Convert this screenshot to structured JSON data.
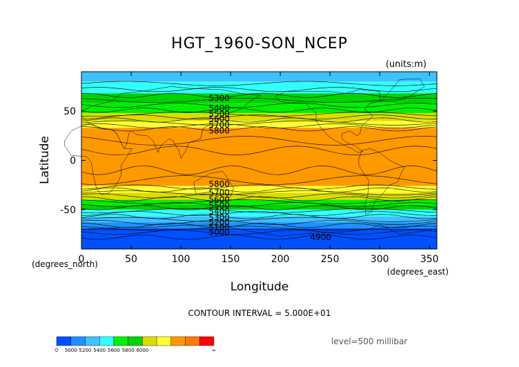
{
  "chart_data": {
    "type": "contour",
    "title": "HGT_1960-SON_NCEP",
    "units_label": "(units:m)",
    "xlabel": "Longitude",
    "ylabel": "Latitude",
    "x_unit_label": "(degrees_east)",
    "y_unit_label": "(degrees_north)",
    "xlim": [
      0,
      357.5
    ],
    "ylim": [
      -90,
      90
    ],
    "xticks": [
      0,
      50,
      100,
      150,
      200,
      250,
      300,
      350
    ],
    "yticks": [
      50,
      0,
      -50
    ],
    "contour_interval_text": "CONTOUR INTERVAL = 5.000E+01",
    "level_text": "level=500 millibar",
    "contour_labels": [
      {
        "text": "5300",
        "lon": 128,
        "lat": 63
      },
      {
        "text": "5400",
        "lon": 128,
        "lat": 53
      },
      {
        "text": "5500",
        "lon": 128,
        "lat": 47
      },
      {
        "text": "5600",
        "lon": 128,
        "lat": 42
      },
      {
        "text": "5700",
        "lon": 128,
        "lat": 36
      },
      {
        "text": "5800",
        "lon": 128,
        "lat": 30
      },
      {
        "text": "5800",
        "lon": 128,
        "lat": -24
      },
      {
        "text": "5700",
        "lon": 128,
        "lat": -33
      },
      {
        "text": "5600",
        "lon": 128,
        "lat": -40
      },
      {
        "text": "5500",
        "lon": 128,
        "lat": -46
      },
      {
        "text": "5400",
        "lon": 128,
        "lat": -52
      },
      {
        "text": "5300",
        "lon": 128,
        "lat": -58
      },
      {
        "text": "5200",
        "lon": 128,
        "lat": -63
      },
      {
        "text": "5100",
        "lon": 128,
        "lat": -68
      },
      {
        "text": "5000",
        "lon": 128,
        "lat": -73
      },
      {
        "text": "4900",
        "lon": 230,
        "lat": -78
      }
    ],
    "fill_bands": [
      {
        "lat_top": 90,
        "lat_bottom": 80,
        "color": "#3fc0ff"
      },
      {
        "lat_top": 80,
        "lat_bottom": 68,
        "color": "#33ffff"
      },
      {
        "lat_top": 68,
        "lat_bottom": 58,
        "color": "#00d200"
      },
      {
        "lat_top": 58,
        "lat_bottom": 48,
        "color": "#00f000"
      },
      {
        "lat_top": 48,
        "lat_bottom": 40,
        "color": "#dcdc00"
      },
      {
        "lat_top": 40,
        "lat_bottom": 33,
        "color": "#ffff32"
      },
      {
        "lat_top": 33,
        "lat_bottom": -26,
        "color": "#ff9900"
      },
      {
        "lat_top": -26,
        "lat_bottom": -33,
        "color": "#ffff32"
      },
      {
        "lat_top": -33,
        "lat_bottom": -40,
        "color": "#dcdc00"
      },
      {
        "lat_top": -40,
        "lat_bottom": -45,
        "color": "#00f000"
      },
      {
        "lat_top": -45,
        "lat_bottom": -50,
        "color": "#00d200"
      },
      {
        "lat_top": -50,
        "lat_bottom": -57,
        "color": "#33ffff"
      },
      {
        "lat_top": -57,
        "lat_bottom": -63,
        "color": "#3fc0ff"
      },
      {
        "lat_top": -63,
        "lat_bottom": -69,
        "color": "#1e90ff"
      },
      {
        "lat_top": -69,
        "lat_bottom": -90,
        "color": "#0050ff"
      }
    ],
    "contour_lats": [
      78,
      72,
      66,
      61,
      56,
      51,
      47,
      44,
      41,
      38,
      35,
      32,
      20,
      10,
      -10,
      -20,
      -27,
      -30,
      -33,
      -36,
      -39,
      -42,
      -45,
      -48,
      -51,
      -54,
      -57,
      -60,
      -63,
      -66,
      -69,
      -73,
      -78
    ],
    "colorbar": {
      "colors": [
        "#0050ff",
        "#1e90ff",
        "#3fc0ff",
        "#33ffff",
        "#00f000",
        "#00d200",
        "#dcdc00",
        "#ffff32",
        "#ff9900",
        "#ff7a00",
        "#ff0000"
      ],
      "labels": [
        "0",
        "5000",
        "5200",
        "5400",
        "5600",
        "5800",
        "6000",
        "∞"
      ]
    }
  }
}
